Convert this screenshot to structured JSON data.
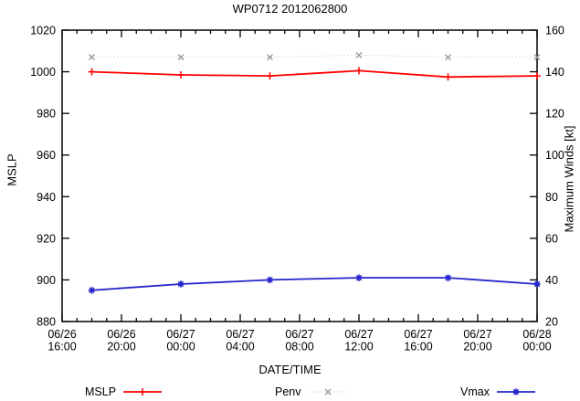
{
  "chart_data": {
    "type": "line",
    "title": "WP0712 2012062800",
    "xlabel": "DATE/TIME",
    "ylabel_left": "MSLP",
    "ylabel_right": "Maximum Winds [kt]",
    "background": "#ffffff",
    "grid": false,
    "legend_position": "bottom",
    "y_left": {
      "range": [
        880,
        1020
      ],
      "tick_step": 20,
      "tick_labels": [
        "880",
        "900",
        "920",
        "940",
        "960",
        "980",
        "1000",
        "1020"
      ]
    },
    "y_right": {
      "range": [
        20,
        160
      ],
      "tick_step": 20,
      "tick_labels": [
        "20",
        "40",
        "60",
        "80",
        "100",
        "120",
        "140",
        "160"
      ]
    },
    "x_axis": {
      "start_hour": 0,
      "end_hour": 32,
      "major_tick_hours": [
        0,
        4,
        8,
        12,
        16,
        20,
        24,
        28,
        32
      ],
      "minor_tick_every_hours": 1,
      "tick_labels": [
        {
          "date": "06/26",
          "time": "16:00"
        },
        {
          "date": "06/26",
          "time": "20:00"
        },
        {
          "date": "06/27",
          "time": "00:00"
        },
        {
          "date": "06/27",
          "time": "04:00"
        },
        {
          "date": "06/27",
          "time": "08:00"
        },
        {
          "date": "06/27",
          "time": "12:00"
        },
        {
          "date": "06/27",
          "time": "16:00"
        },
        {
          "date": "06/27",
          "time": "20:00"
        },
        {
          "date": "06/28",
          "time": "00:00"
        }
      ]
    },
    "x_point_times": [
      "06/26 18:00",
      "06/27 00:00",
      "06/27 06:00",
      "06/27 12:00",
      "06/27 18:00",
      "06/28 00:00"
    ],
    "x_point_hours_from_start": [
      2,
      8,
      14,
      20,
      26,
      32
    ],
    "series": [
      {
        "name": "MSLP",
        "axis": "left",
        "color": "#ff0000",
        "marker_color": "#ff0000",
        "line_style": "solid",
        "marker": "plus",
        "values": [
          1000,
          998.5,
          998,
          1000.5,
          997.5,
          998
        ]
      },
      {
        "name": "Penv",
        "axis": "left",
        "color": "#bcbcbc",
        "marker_color": "#9c9c9c",
        "line_style": "dotted",
        "marker": "cross",
        "values": [
          1007,
          1007,
          1007,
          1008,
          1007,
          1007
        ]
      },
      {
        "name": "Vmax",
        "axis": "right",
        "color": "#2424cc",
        "marker_color": "#2424cc",
        "line_style": "solid",
        "marker": "asterisk",
        "values": [
          35,
          38,
          40,
          41,
          41,
          38
        ]
      }
    ],
    "frame_color": "#000000"
  }
}
